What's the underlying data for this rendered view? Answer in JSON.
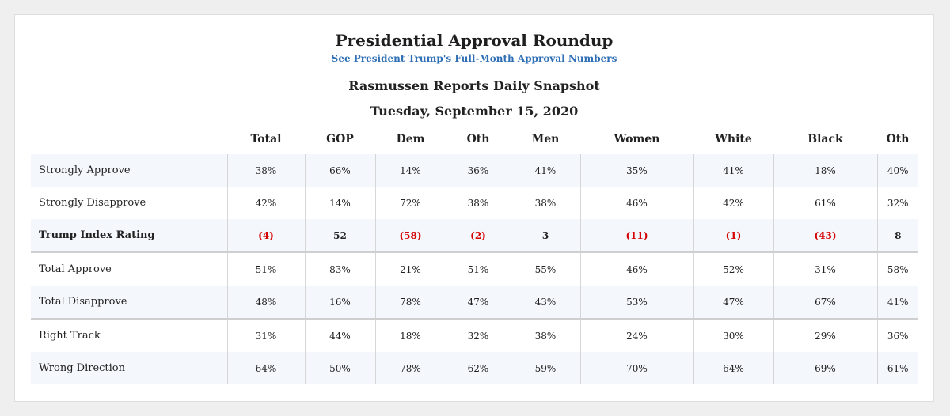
{
  "header": {
    "title": "Presidential Approval Roundup",
    "link": "See President Trump's Full-Month Approval Numbers",
    "subtitle": "Rasmussen Reports Daily Snapshot",
    "date": "Tuesday, September 15, 2020"
  },
  "table": {
    "columns": [
      "Total",
      "GOP",
      "Dem",
      "Oth",
      "Men",
      "Women",
      "White",
      "Black",
      "Oth"
    ],
    "rows": [
      {
        "label": "Strongly Approve",
        "cells": [
          "38%",
          "66%",
          "14%",
          "36%",
          "41%",
          "35%",
          "41%",
          "18%",
          "40%"
        ]
      },
      {
        "label": "Strongly Disapprove",
        "cells": [
          "42%",
          "14%",
          "72%",
          "38%",
          "38%",
          "46%",
          "42%",
          "61%",
          "32%"
        ]
      },
      {
        "label": "Trump Index Rating",
        "cells": [
          "(4)",
          "52",
          "(58)",
          "(2)",
          "3",
          "(11)",
          "(1)",
          "(43)",
          "8"
        ]
      },
      {
        "label": "Total Approve",
        "cells": [
          "51%",
          "83%",
          "21%",
          "51%",
          "55%",
          "46%",
          "52%",
          "31%",
          "58%"
        ]
      },
      {
        "label": "Total Disapprove",
        "cells": [
          "48%",
          "16%",
          "78%",
          "47%",
          "43%",
          "53%",
          "47%",
          "67%",
          "41%"
        ]
      },
      {
        "label": "Right Track",
        "cells": [
          "31%",
          "44%",
          "18%",
          "32%",
          "38%",
          "24%",
          "30%",
          "29%",
          "36%"
        ]
      },
      {
        "label": "Wrong Direction",
        "cells": [
          "64%",
          "50%",
          "78%",
          "62%",
          "59%",
          "70%",
          "64%",
          "69%",
          "61%"
        ]
      }
    ]
  },
  "colors": {
    "link": "#2f6fb5",
    "negative": "#d40000",
    "stripe": "#f4f7fc"
  }
}
